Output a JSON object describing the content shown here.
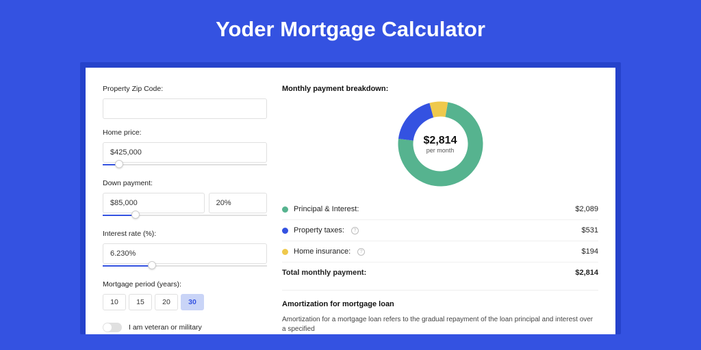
{
  "page": {
    "title": "Yoder Mortgage Calculator",
    "background_color": "#3452e1",
    "card_shadow_color": "#2542cb",
    "card_bg": "#ffffff"
  },
  "form": {
    "zip": {
      "label": "Property Zip Code:",
      "value": ""
    },
    "home_price": {
      "label": "Home price:",
      "value": "$425,000",
      "slider_pct": 10
    },
    "down_payment": {
      "label": "Down payment:",
      "amount": "$85,000",
      "percent": "20%",
      "slider_pct": 20
    },
    "interest_rate": {
      "label": "Interest rate (%):",
      "value": "6.230%",
      "slider_pct": 30
    },
    "mortgage_period": {
      "label": "Mortgage period (years):",
      "options": [
        "10",
        "15",
        "20",
        "30"
      ],
      "active_index": 3,
      "active_bg": "#c9d4f7",
      "active_color": "#3452e1"
    },
    "veteran": {
      "label": "I am veteran or military",
      "checked": false
    }
  },
  "breakdown": {
    "title": "Monthly payment breakdown:",
    "center_amount": "$2,814",
    "center_sub": "per month",
    "donut": {
      "type": "pie",
      "radius_outer": 62,
      "radius_inner": 40,
      "background": "#ffffff",
      "slices": [
        {
          "label": "Principal & Interest",
          "value": 2089,
          "color": "#56b38f",
          "start": 10,
          "end": 277
        },
        {
          "label": "Property taxes",
          "value": 531,
          "color": "#3452e1",
          "start": 277,
          "end": 345
        },
        {
          "label": "Home insurance",
          "value": 194,
          "color": "#efc94c",
          "start": 345,
          "end": 370
        }
      ]
    },
    "rows": [
      {
        "color": "#56b38f",
        "label": "Principal & Interest:",
        "value": "$2,089",
        "info": false
      },
      {
        "color": "#3452e1",
        "label": "Property taxes:",
        "value": "$531",
        "info": true
      },
      {
        "color": "#efc94c",
        "label": "Home insurance:",
        "value": "$194",
        "info": true
      }
    ],
    "total": {
      "label": "Total monthly payment:",
      "value": "$2,814"
    }
  },
  "amortization": {
    "title": "Amortization for mortgage loan",
    "text": "Amortization for a mortgage loan refers to the gradual repayment of the loan principal and interest over a specified"
  }
}
